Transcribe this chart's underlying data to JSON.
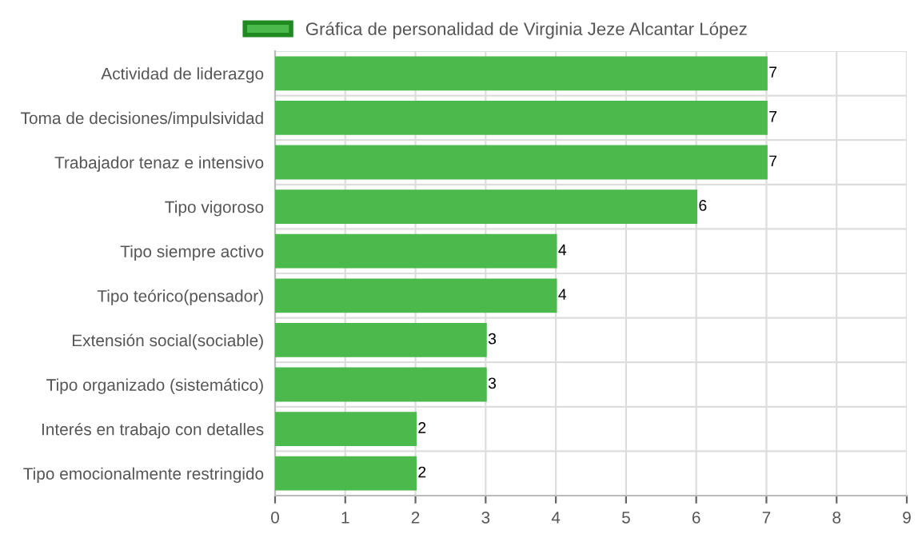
{
  "chart_data": {
    "type": "bar",
    "orientation": "horizontal",
    "categories": [
      "Actividad de liderazgo",
      "Toma de decisiones/impulsividad",
      "Trabajador tenaz e intensivo",
      "Tipo vigoroso",
      "Tipo siempre activo",
      "Tipo teórico(pensador)",
      "Extensión social(sociable)",
      "Tipo organizado (sistemático)",
      "Interés en trabajo con detalles",
      "Tipo emocionalmente restringido"
    ],
    "series": [
      {
        "name": "Gráfica de personalidad de Virginia Jeze Alcantar López",
        "color": "#4cb94c",
        "values": [
          7,
          7,
          7,
          6,
          4,
          4,
          3,
          3,
          2,
          2
        ]
      }
    ],
    "xlim": [
      0,
      9
    ],
    "xticks": [
      0,
      1,
      2,
      3,
      4,
      5,
      6,
      7,
      8,
      9
    ],
    "grid": true,
    "legend": "top",
    "data_labels": true
  }
}
